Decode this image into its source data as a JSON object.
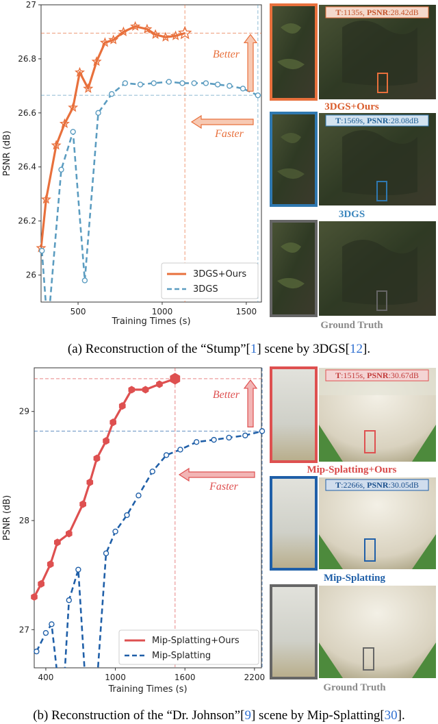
{
  "colors": {
    "ours_a": "#e8703c",
    "base_a": "#5b9cc0",
    "ours_b": "#de5050",
    "base_b": "#1f5fa8",
    "gt": "#666666"
  },
  "chart_data": [
    {
      "type": "line",
      "title": "",
      "xlabel": "Training Times (s)",
      "ylabel": "PSNR (dB)",
      "xlim": [
        280,
        1590
      ],
      "ylim": [
        25.9,
        27.0
      ],
      "xticks": [
        500,
        1000,
        1500
      ],
      "yticks": [
        26.0,
        26.2,
        26.4,
        26.6,
        26.8,
        27.0
      ],
      "grid": false,
      "legend": "bottom-right",
      "marker_ours": "star",
      "series": [
        {
          "name": "3DGS+Ours",
          "style": "solid",
          "x": [
            280,
            310,
            370,
            420,
            470,
            510,
            560,
            610,
            660,
            710,
            770,
            840,
            910,
            960,
            1020,
            1080,
            1135
          ],
          "y": [
            26.1,
            26.28,
            26.48,
            26.56,
            26.62,
            26.75,
            26.69,
            26.79,
            26.86,
            26.87,
            26.9,
            26.92,
            26.91,
            26.89,
            26.88,
            26.885,
            26.895
          ]
        },
        {
          "name": "3DGS",
          "style": "dashed",
          "x": [
            285,
            320,
            400,
            470,
            540,
            620,
            700,
            780,
            870,
            950,
            1040,
            1120,
            1190,
            1260,
            1330,
            1400,
            1480,
            1569
          ],
          "y": [
            26.09,
            25.8,
            26.39,
            26.53,
            25.98,
            26.6,
            26.67,
            26.71,
            26.705,
            26.71,
            26.715,
            26.71,
            26.71,
            26.71,
            26.705,
            26.7,
            26.69,
            26.665
          ]
        }
      ],
      "annotations": [
        {
          "text": "Better"
        },
        {
          "text": "Faster"
        }
      ],
      "reference": {
        "ours_time": 1135,
        "ours_psnr": 26.895,
        "base_time": 1569,
        "base_psnr": 26.665
      }
    },
    {
      "type": "line",
      "title": "",
      "xlabel": "Training Times (s)",
      "ylabel": "PSNR (dB)",
      "xlim": [
        300,
        2260
      ],
      "ylim": [
        26.65,
        29.4
      ],
      "xticks": [
        400,
        1000,
        1600,
        2200
      ],
      "yticks": [
        27,
        28,
        29
      ],
      "grid": false,
      "legend": "bottom-right",
      "marker_ours": "hexagon",
      "series": [
        {
          "name": "Mip-Splatting+Ours",
          "style": "solid",
          "x": [
            300,
            360,
            440,
            500,
            600,
            720,
            780,
            840,
            920,
            980,
            1060,
            1140,
            1260,
            1380,
            1515
          ],
          "y": [
            27.3,
            27.42,
            27.6,
            27.8,
            27.88,
            28.15,
            28.35,
            28.57,
            28.73,
            28.9,
            29.05,
            29.2,
            29.2,
            29.25,
            29.3
          ]
        },
        {
          "name": "Mip-Splatting",
          "style": "dashed",
          "x": [
            320,
            400,
            450,
            540,
            600,
            680,
            760,
            840,
            920,
            1000,
            1100,
            1200,
            1320,
            1440,
            1560,
            1700,
            1850,
            1980,
            2120,
            2266
          ],
          "y": [
            26.8,
            26.97,
            27.05,
            26.2,
            27.27,
            27.55,
            26.2,
            26.5,
            27.7,
            27.9,
            28.05,
            28.23,
            28.45,
            28.6,
            28.65,
            28.72,
            28.74,
            28.76,
            28.78,
            28.82
          ]
        }
      ],
      "annotations": [
        {
          "text": "Better"
        },
        {
          "text": "Faster"
        }
      ],
      "reference": {
        "ours_time": 1515,
        "ours_psnr": 29.3,
        "base_time": 2266,
        "base_psnr": 28.82
      }
    }
  ],
  "panel_a": {
    "ours_tag_t": "T",
    "ours_tag_rest": ":1135s, ",
    "ours_tag_p": "PSNR",
    "ours_tag_val": ":28.42dB",
    "ours_label": "3DGS+Ours",
    "base_tag_t": "T",
    "base_tag_rest": ":1569s, ",
    "base_tag_p": "PSNR",
    "base_tag_val": ":28.08dB",
    "base_label": "3DGS",
    "gt_label": "Ground Truth",
    "caption_pre": "(a) Reconstruction of the “Stump”[",
    "caption_ref1": "1",
    "caption_mid": "] scene by 3DGS[",
    "caption_ref2": "12",
    "caption_post": "]."
  },
  "panel_b": {
    "ours_tag_t": "T",
    "ours_tag_rest": ":1515s, ",
    "ours_tag_p": "PSNR",
    "ours_tag_val": ":30.67dB",
    "ours_label": "Mip-Splatting+Ours",
    "base_tag_t": "T",
    "base_tag_rest": ":2266s, ",
    "base_tag_p": "PSNR",
    "base_tag_val": ":30.05dB",
    "base_label": "Mip-Splatting",
    "gt_label": "Ground Truth",
    "caption_pre": "(b) Reconstruction of the “Dr. Johnson”[",
    "caption_ref1": "9",
    "caption_mid": "] scene by Mip-Splatting[",
    "caption_ref2": "30",
    "caption_post": "]."
  }
}
